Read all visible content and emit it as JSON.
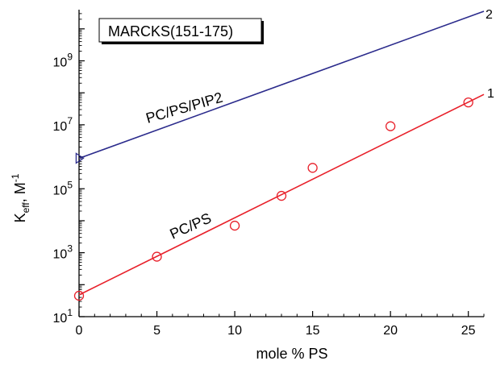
{
  "chart_data": {
    "type": "scatter",
    "title": "",
    "xlabel": "mole % PS",
    "ylabel_base": "K",
    "ylabel_sub": "eff",
    "ylabel_sep": ", M",
    "ylabel_sup": "-1",
    "xlim": [
      0,
      26
    ],
    "ylim_log10": [
      1,
      10.6
    ],
    "y_scale": "log",
    "x_ticks": [
      0,
      5,
      10,
      15,
      20,
      25
    ],
    "x_tick_labels": [
      "0",
      "5",
      "10",
      "15",
      "20",
      "25"
    ],
    "y_tick_exponents": [
      1,
      3,
      5,
      7,
      9
    ],
    "y_tick_base": "10",
    "y_tick_sups": [
      "1",
      "3",
      "5",
      "7",
      "9"
    ],
    "legend_box": "MARCKS(151-175)",
    "series": [
      {
        "name": "PC/PS/PIP2",
        "end_label": "2",
        "color": "#2b2b8c",
        "marker": "triangle",
        "points": [
          {
            "x": 0,
            "y": 900000
          }
        ],
        "fit_log10": {
          "x0": 0,
          "y0": 5.95,
          "x1": 26,
          "y1": 10.55
        }
      },
      {
        "name": "PC/PS",
        "end_label": "1",
        "color": "#e8202a",
        "marker": "circle",
        "points": [
          {
            "x": 0,
            "y": 45
          },
          {
            "x": 5,
            "y": 750
          },
          {
            "x": 10,
            "y": 7000
          },
          {
            "x": 13,
            "y": 60000
          },
          {
            "x": 15,
            "y": 450000
          },
          {
            "x": 20,
            "y": 9000000
          },
          {
            "x": 25,
            "y": 50000000
          }
        ],
        "fit_log10": {
          "x0": 0,
          "y0": 1.68,
          "x1": 26,
          "y1": 7.95
        }
      }
    ]
  }
}
